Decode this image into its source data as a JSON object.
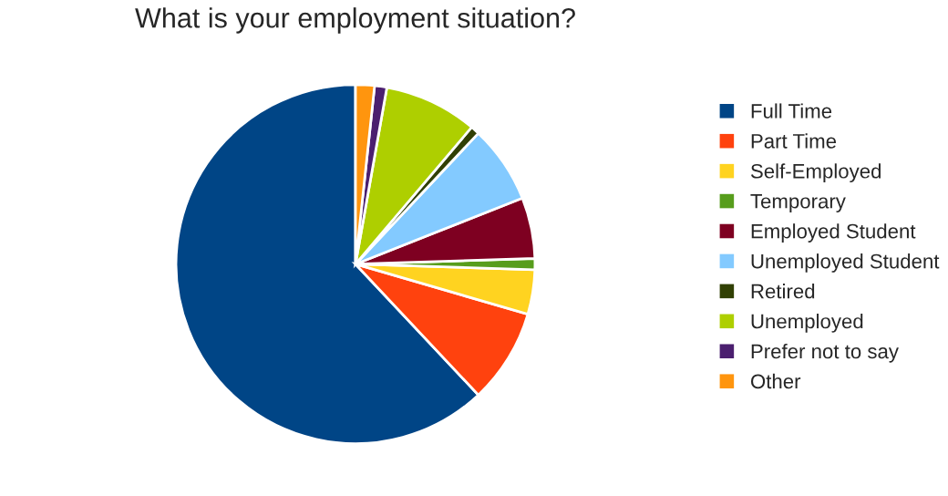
{
  "chart_data": {
    "type": "pie",
    "title": "What is your employment situation?",
    "categories": [
      "Full Time",
      "Part Time",
      "Self-Employed",
      "Temporary",
      "Employed Student",
      "Unemployed Student",
      "Retired",
      "Unemployed",
      "Prefer not to say",
      "Other"
    ],
    "values": [
      62,
      8.5,
      4,
      1,
      5.5,
      7,
      0.8,
      8.4,
      1.1,
      1.7
    ],
    "colors": [
      "#004586",
      "#ff420e",
      "#ffd320",
      "#579d1c",
      "#7e0021",
      "#83caff",
      "#314004",
      "#aecf00",
      "#4b1f6f",
      "#ff950e"
    ],
    "legend": "right"
  }
}
